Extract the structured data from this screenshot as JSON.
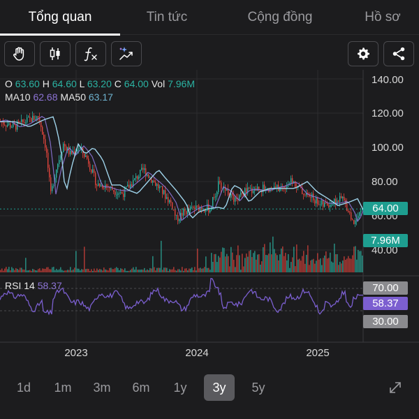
{
  "tabs": [
    {
      "label": "Tổng quan",
      "active": true
    },
    {
      "label": "Tin tức",
      "active": false
    },
    {
      "label": "Cộng đồng",
      "active": false
    },
    {
      "label": "Hồ sơ",
      "active": false
    }
  ],
  "toolbar": {
    "left_buttons": [
      "hand-icon",
      "candlestick-icon",
      "function-icon",
      "ai-trend-icon"
    ],
    "right_buttons": [
      "gear-icon",
      "share-icon"
    ]
  },
  "ohlc": {
    "o_label": "O",
    "o_value": "63.60",
    "h_label": "H",
    "h_value": "64.60",
    "l_label": "L",
    "l_value": "63.20",
    "c_label": "C",
    "c_value": "64.00",
    "vol_label": "Vol",
    "vol_value": "7.96M"
  },
  "ma": {
    "ma10_label": "MA10",
    "ma10_value": "62.68",
    "ma50_label": "MA50",
    "ma50_value": "63.17"
  },
  "rsi": {
    "label": "RSI 14",
    "value": "58.37",
    "upper": "70.00",
    "lower": "30.00"
  },
  "price_axis": [
    "140.00",
    "120.00",
    "100.00",
    "80.00",
    "60.00",
    "40.00"
  ],
  "badges": {
    "price": "64.00",
    "volume": "7.96M"
  },
  "x_axis": [
    "2023",
    "2024",
    "2025"
  ],
  "ranges": [
    {
      "label": "1d",
      "active": false
    },
    {
      "label": "1m",
      "active": false
    },
    {
      "label": "3m",
      "active": false
    },
    {
      "label": "6m",
      "active": false
    },
    {
      "label": "1y",
      "active": false
    },
    {
      "label": "3y",
      "active": true
    },
    {
      "label": "5y",
      "active": false
    }
  ],
  "colors": {
    "up": "#2bb3a3",
    "down": "#e0443c",
    "ma10": "#8d74d6",
    "ma50": "#9fd3ea",
    "rsi": "#7b5fd0"
  }
}
